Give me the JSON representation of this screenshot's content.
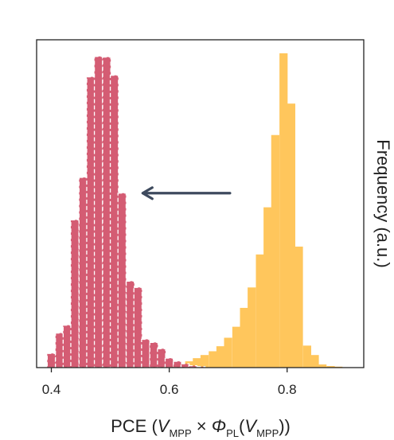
{
  "chart_data": {
    "type": "histogram",
    "xlabel": {
      "prefix": "PCE (",
      "v1": "V",
      "v1_sub": "MPP",
      "times": " × ",
      "phi": "Φ",
      "phi_sub": "PL",
      "paren_open": "(",
      "v2": "V",
      "v2_sub": "MPP",
      "suffix": "))"
    },
    "ylabel": "Frequency (a.u.)",
    "xlim": [
      0.375,
      0.93
    ],
    "ylim": [
      0,
      1.0
    ],
    "xticks": [
      0.4,
      0.6,
      0.8
    ],
    "xtick_labels": [
      "0.4",
      "0.6",
      "0.8"
    ],
    "yticks_shown": false,
    "bin_width": 0.0133,
    "series": [
      {
        "name": "",
        "color": "#FFC65C",
        "bins_start": [
          0.587,
          0.6,
          0.613,
          0.627,
          0.64,
          0.653,
          0.667,
          0.68,
          0.693,
          0.707,
          0.72,
          0.733,
          0.747,
          0.76,
          0.773,
          0.787,
          0.8,
          0.813,
          0.827,
          0.84,
          0.853,
          0.867,
          0.88
        ],
        "values": [
          0.003,
          0.006,
          0.012,
          0.02,
          0.03,
          0.04,
          0.052,
          0.068,
          0.095,
          0.13,
          0.19,
          0.255,
          0.36,
          0.51,
          0.74,
          1.0,
          0.84,
          0.385,
          0.07,
          0.04,
          0.01,
          0.005,
          0.003
        ]
      },
      {
        "name": "",
        "color": "#D3576E",
        "bins_start": [
          0.393,
          0.407,
          0.42,
          0.433,
          0.447,
          0.46,
          0.473,
          0.487,
          0.5,
          0.513,
          0.527,
          0.54,
          0.553,
          0.567,
          0.58,
          0.593,
          0.607,
          0.62,
          0.633,
          0.647
        ],
        "values": [
          0.045,
          0.11,
          0.135,
          0.47,
          0.605,
          0.925,
          0.99,
          0.988,
          0.93,
          0.555,
          0.275,
          0.255,
          0.09,
          0.08,
          0.06,
          0.03,
          0.02,
          0.012,
          0.006,
          0.003
        ]
      }
    ],
    "annotation": {
      "type": "arrow",
      "from_x": 0.703,
      "to_x": 0.555,
      "y": 0.555,
      "color": "#3E4A5E"
    }
  }
}
